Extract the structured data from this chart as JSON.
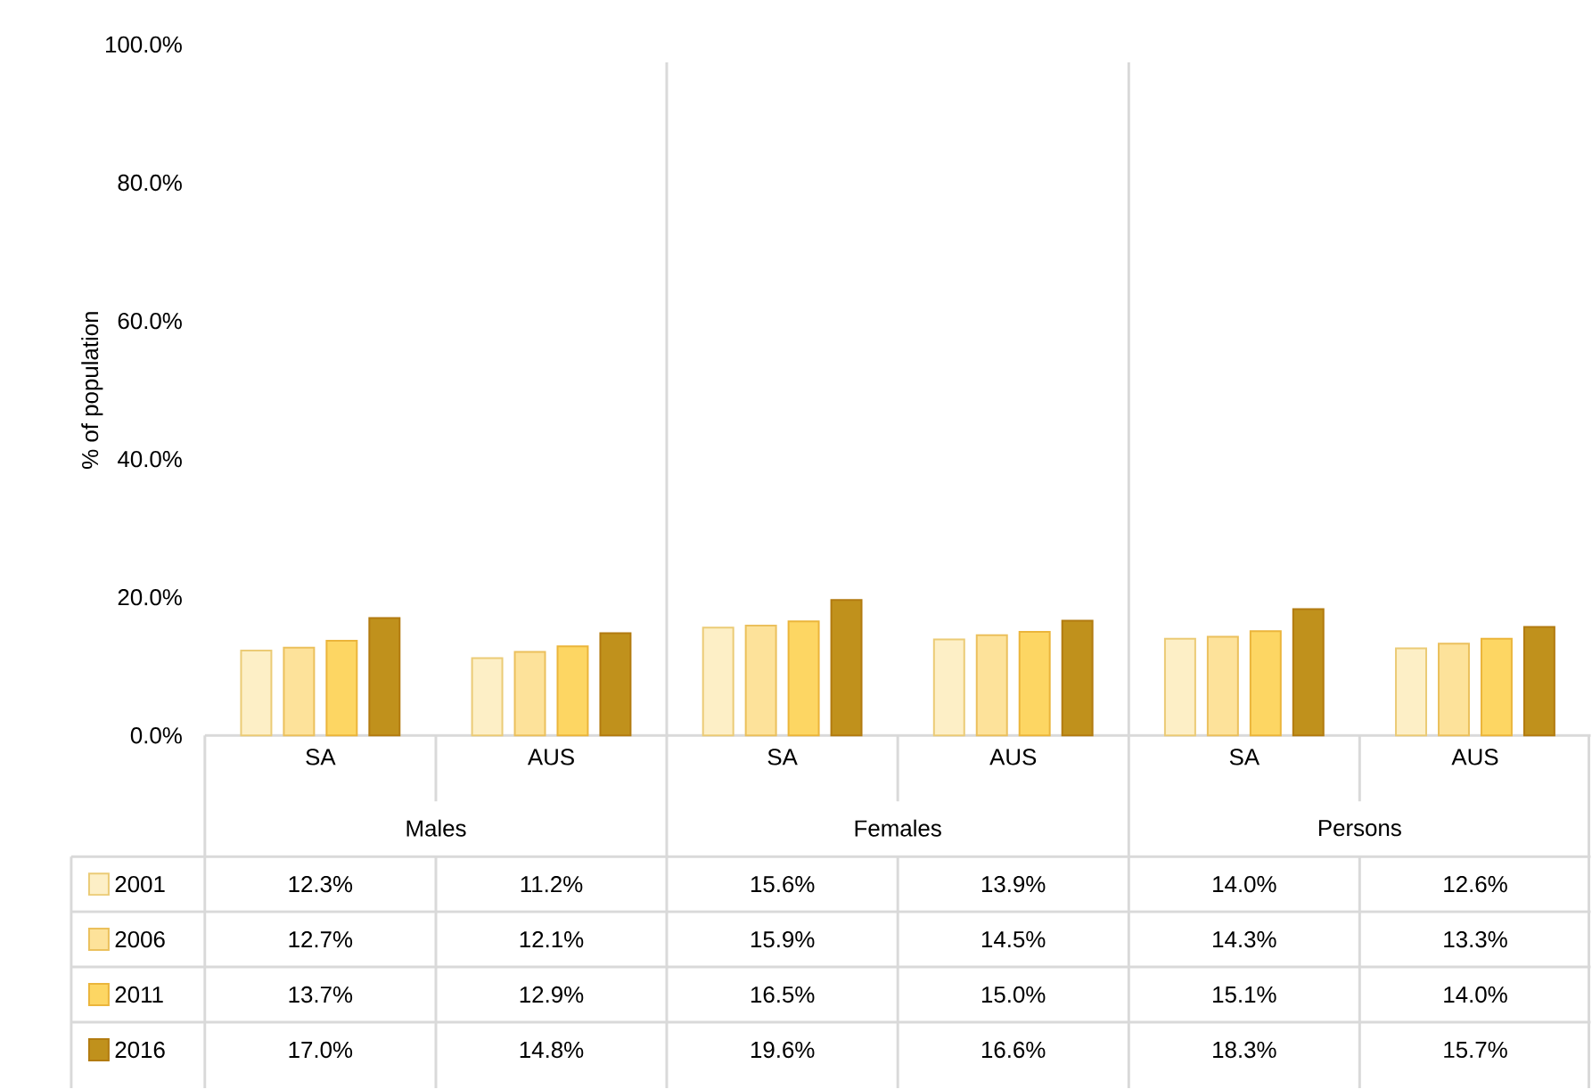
{
  "chart_data": {
    "type": "bar",
    "ylabel": "% of population",
    "categories": [
      "SA",
      "AUS",
      "SA",
      "AUS",
      "SA",
      "AUS"
    ],
    "annotations": [
      "Males",
      "Females",
      "Persons"
    ],
    "series": [
      {
        "name": "2001",
        "color": "#fdefc6",
        "values": [
          12.3,
          11.2,
          15.6,
          13.9,
          14.0,
          12.6
        ],
        "value_labels": [
          "12.3%",
          "11.2%",
          "15.6%",
          "13.9%",
          "14.0%",
          "12.6%"
        ]
      },
      {
        "name": "2006",
        "color": "#fde29a",
        "values": [
          12.7,
          12.1,
          15.9,
          14.5,
          14.3,
          13.3
        ],
        "value_labels": [
          "12.7%",
          "12.1%",
          "15.9%",
          "14.5%",
          "14.3%",
          "13.3%"
        ]
      },
      {
        "name": "2011",
        "color": "#fdd663",
        "values": [
          13.7,
          12.9,
          16.5,
          15.0,
          15.1,
          14.0
        ],
        "value_labels": [
          "13.7%",
          "12.9%",
          "16.5%",
          "15.0%",
          "15.1%",
          "14.0%"
        ]
      },
      {
        "name": "2016",
        "color": "#c0911c",
        "values": [
          17.0,
          14.8,
          19.6,
          16.6,
          18.3,
          15.7
        ],
        "value_labels": [
          "17.0%",
          "14.8%",
          "19.6%",
          "16.6%",
          "18.3%",
          "15.7%"
        ]
      }
    ],
    "ylim": [
      0,
      100
    ],
    "yticks": [
      {
        "value": 0,
        "label": "0.0%"
      },
      {
        "value": 20,
        "label": "20.0%"
      },
      {
        "value": 40,
        "label": "40.0%"
      },
      {
        "value": 60,
        "label": "60.0%"
      },
      {
        "value": 80,
        "label": "80.0%"
      },
      {
        "value": 100,
        "label": "100.0%"
      }
    ],
    "grid": false,
    "legend": "bottom"
  }
}
